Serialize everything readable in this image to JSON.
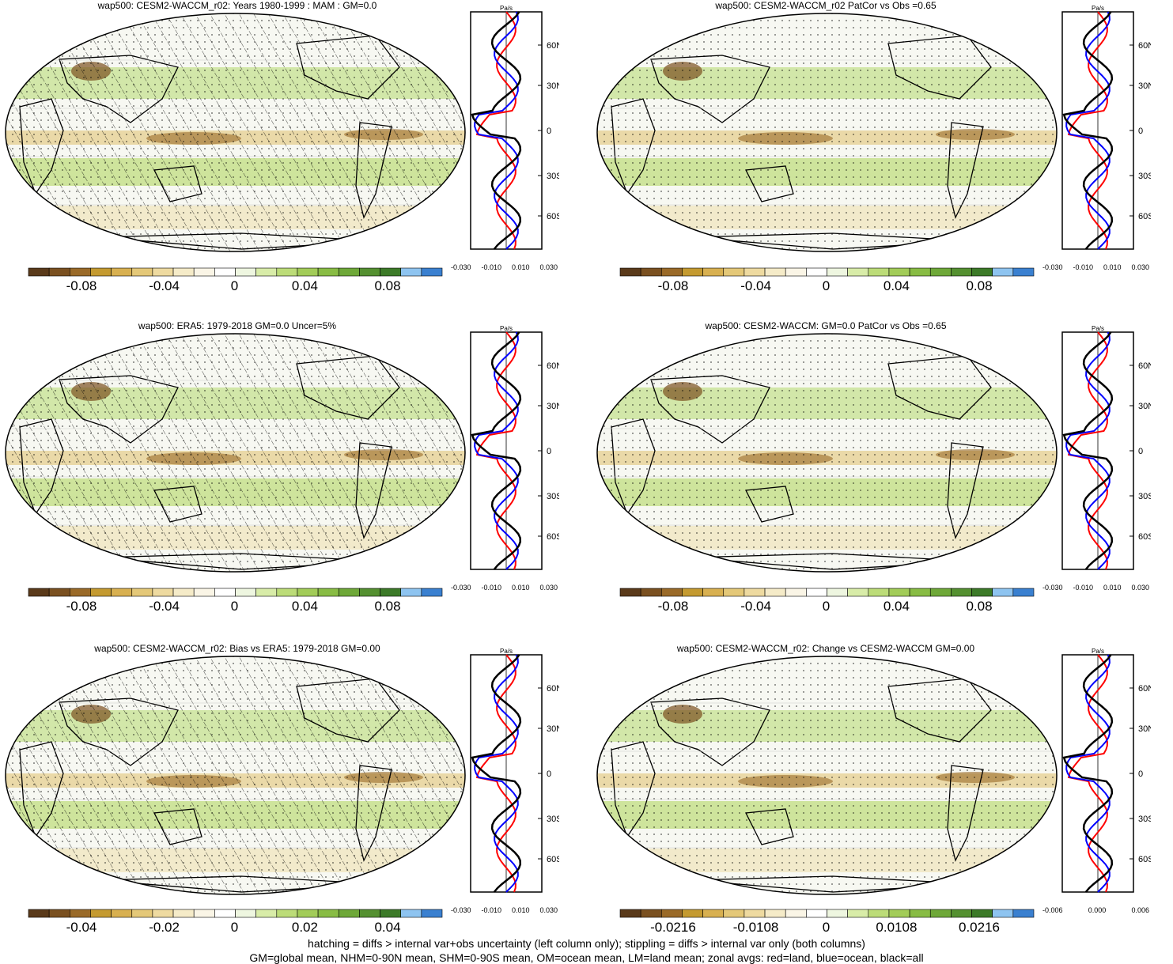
{
  "panels": [
    {
      "title": "wap500: CESM2-WACCM_r02: Years 1980-1999 : MAM : GM=0.0",
      "colorbar_labels": [
        "-0.08",
        "-0.04",
        "0",
        "0.04",
        "0.08"
      ],
      "zonal_unit": "Pa/s",
      "zonal_lat_labels": [
        "60N",
        "30N",
        "0",
        "30S",
        "60S"
      ],
      "zonal_x_labels": [
        "-0.030",
        "-0.010",
        "0.010",
        "0.030"
      ]
    },
    {
      "title": "wap500: CESM2-WACCM_r02 PatCor vs Obs =0.65",
      "colorbar_labels": [
        "-0.08",
        "-0.04",
        "0",
        "0.04",
        "0.08"
      ],
      "zonal_unit": "Pa/s",
      "zonal_lat_labels": [
        "60N",
        "30N",
        "0",
        "30S",
        "60S"
      ],
      "zonal_x_labels": [
        "-0.030",
        "-0.010",
        "0.010",
        "0.030"
      ]
    },
    {
      "title": "wap500: ERA5: 1979-2018 GM=0.0 Uncer=5%",
      "colorbar_labels": [
        "-0.08",
        "-0.04",
        "0",
        "0.04",
        "0.08"
      ],
      "zonal_unit": "Pa/s",
      "zonal_lat_labels": [
        "60N",
        "30N",
        "0",
        "30S",
        "60S"
      ],
      "zonal_x_labels": [
        "-0.030",
        "-0.010",
        "0.010",
        "0.030"
      ]
    },
    {
      "title": "wap500: CESM2-WACCM: GM=0.0 PatCor vs Obs =0.65",
      "colorbar_labels": [
        "-0.08",
        "-0.04",
        "0",
        "0.04",
        "0.08"
      ],
      "zonal_unit": "Pa/s",
      "zonal_lat_labels": [
        "60N",
        "30N",
        "0",
        "30S",
        "60S"
      ],
      "zonal_x_labels": [
        "-0.030",
        "-0.010",
        "0.010",
        "0.030"
      ]
    },
    {
      "title": "wap500: CESM2-WACCM_r02: Bias vs ERA5: 1979-2018 GM=0.00",
      "colorbar_labels": [
        "-0.04",
        "-0.02",
        "0",
        "0.02",
        "0.04"
      ],
      "zonal_unit": "Pa/s",
      "zonal_lat_labels": [
        "60N",
        "30N",
        "0",
        "30S",
        "60S"
      ],
      "zonal_x_labels": [
        "-0.030",
        "-0.010",
        "0.010",
        "0.030"
      ]
    },
    {
      "title": "wap500: CESM2-WACCM_r02: Change vs CESM2-WACCM GM=0.00",
      "colorbar_labels": [
        "-0.0216",
        "-0.0108",
        "0",
        "0.0108",
        "0.0216"
      ],
      "zonal_unit": "Pa/s",
      "zonal_lat_labels": [
        "60N",
        "30N",
        "0",
        "30S",
        "60S"
      ],
      "zonal_x_labels": [
        "-0.006",
        "0.000",
        "0.006"
      ]
    }
  ],
  "colorbar_colors": [
    "#5a3a1a",
    "#7a5020",
    "#9a6a28",
    "#c49a30",
    "#d8b050",
    "#e4c878",
    "#eedaa0",
    "#f5ebc8",
    "#faf5e6",
    "#ffffff",
    "#eef6e0",
    "#d8eca8",
    "#bcdc78",
    "#a2cc58",
    "#88bc44",
    "#6ea838",
    "#549030",
    "#3c7a28",
    "#8ec4f0",
    "#3a80d0"
  ],
  "zonal_colors": {
    "land": "#ff0000",
    "ocean": "#0000ff",
    "all": "#000000"
  },
  "footer": {
    "line1": "hatching = diffs > internal var+obs uncertainty (left column only); stippling = diffs > internal var only (both columns)",
    "line2": "GM=global mean, NHM=0-90N mean, SHM=0-90S mean, OM=ocean mean, LM=land mean; zonal avgs: red=land, blue=ocean, black=all"
  }
}
